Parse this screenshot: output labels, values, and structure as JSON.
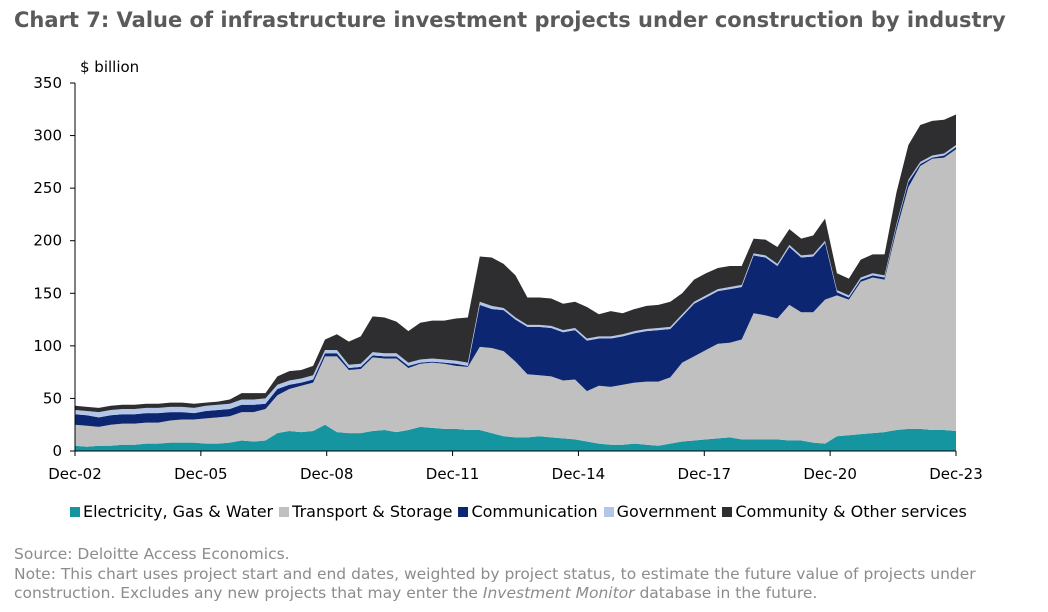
{
  "title": "Chart 7: Value of infrastructure investment projects under construction by industry",
  "footer": {
    "source": "Source: Deloitte Access Economics.",
    "note_line1": "Note: This chart uses project start and end dates, weighted by project status, to estimate the future value of projects under",
    "note_line2_a": "construction. Excludes any new projects that may enter the ",
    "note_line2_italic": "Investment Monitor",
    "note_line2_b": " database in the future."
  },
  "chart_data": {
    "type": "area",
    "stacked": true,
    "ylabel": "$ billion",
    "ylim": [
      0,
      350
    ],
    "yticks": [
      0,
      50,
      100,
      150,
      200,
      250,
      300,
      350
    ],
    "xtick_labels": [
      "Dec-02",
      "Dec-05",
      "Dec-08",
      "Dec-11",
      "Dec-14",
      "Dec-17",
      "Dec-20",
      "Dec-23"
    ],
    "x_start_quarter_label": "Dec-02",
    "frequency": "quarterly",
    "grid": false,
    "legend_position": "bottom",
    "series": [
      {
        "name": "Electricity, Gas & Water",
        "color": "#1495a0",
        "values": [
          5,
          4,
          5,
          5,
          6,
          6,
          7,
          7,
          8,
          8,
          8,
          7,
          7,
          8,
          10,
          9,
          10,
          17,
          19,
          18,
          19,
          25,
          18,
          17,
          17,
          19,
          20,
          18,
          20,
          23,
          22,
          21,
          21,
          20,
          20,
          17,
          14,
          13,
          13,
          14,
          13,
          12,
          11,
          9,
          7,
          6,
          6,
          7,
          6,
          5,
          7,
          9,
          10,
          11,
          12,
          13,
          11,
          11,
          11,
          11,
          10,
          10,
          8,
          7,
          14,
          15,
          16,
          17,
          18,
          20,
          21,
          21,
          20,
          20,
          19
        ]
      },
      {
        "name": "Transport & Storage",
        "color": "#c0c0c0",
        "values": [
          20,
          20,
          18,
          20,
          20,
          20,
          20,
          20,
          21,
          22,
          22,
          24,
          25,
          25,
          27,
          28,
          30,
          36,
          40,
          44,
          46,
          65,
          72,
          60,
          61,
          70,
          68,
          70,
          59,
          60,
          62,
          62,
          60,
          60,
          79,
          81,
          81,
          72,
          60,
          58,
          58,
          55,
          57,
          48,
          55,
          55,
          57,
          58,
          60,
          61,
          63,
          75,
          80,
          85,
          90,
          90,
          95,
          120,
          118,
          115,
          129,
          122,
          124,
          137,
          134,
          129,
          145,
          148,
          145,
          190,
          230,
          250,
          258,
          259,
          268
        ]
      },
      {
        "name": "Communication",
        "color": "#0d2672",
        "values": [
          10,
          10,
          9,
          9,
          9,
          9,
          9,
          9,
          8,
          7,
          6,
          7,
          7,
          7,
          7,
          7,
          5,
          6,
          4,
          3,
          3,
          3,
          3,
          2,
          2,
          2,
          2,
          2,
          2,
          1,
          1,
          1,
          2,
          1,
          40,
          37,
          39,
          40,
          45,
          46,
          46,
          46,
          47,
          48,
          45,
          46,
          46,
          47,
          48,
          49,
          46,
          44,
          50,
          50,
          50,
          51,
          50,
          55,
          55,
          50,
          55,
          52,
          53,
          54,
          3,
          2,
          2,
          2,
          2,
          4,
          5,
          2,
          1,
          2,
          2
        ]
      },
      {
        "name": "Government",
        "color": "#b4c6e7",
        "values": [
          4,
          4,
          5,
          5,
          5,
          5,
          5,
          5,
          5,
          5,
          5,
          5,
          5,
          5,
          5,
          5,
          5,
          4,
          4,
          4,
          4,
          3,
          3,
          3,
          3,
          3,
          3,
          3,
          3,
          3,
          3,
          3,
          3,
          3,
          3,
          3,
          2,
          2,
          2,
          2,
          2,
          2,
          2,
          2,
          2,
          2,
          2,
          2,
          2,
          2,
          2,
          2,
          2,
          2,
          2,
          2,
          2,
          2,
          2,
          2,
          2,
          2,
          2,
          2,
          2,
          2,
          2,
          2,
          2,
          2,
          2,
          2,
          2,
          2,
          2
        ]
      },
      {
        "name": "Community & Other services",
        "color": "#2e2e30",
        "values": [
          4,
          4,
          4,
          4,
          4,
          4,
          4,
          4,
          4,
          4,
          4,
          3,
          3,
          4,
          6,
          6,
          5,
          8,
          9,
          8,
          9,
          10,
          15,
          22,
          26,
          34,
          34,
          30,
          30,
          35,
          36,
          37,
          40,
          43,
          43,
          46,
          42,
          40,
          26,
          26,
          26,
          25,
          25,
          30,
          21,
          24,
          20,
          21,
          22,
          22,
          24,
          20,
          21,
          21,
          20,
          20,
          18,
          14,
          15,
          16,
          15,
          16,
          18,
          21,
          16,
          16,
          17,
          18,
          20,
          30,
          33,
          35,
          33,
          32,
          29
        ]
      }
    ]
  }
}
